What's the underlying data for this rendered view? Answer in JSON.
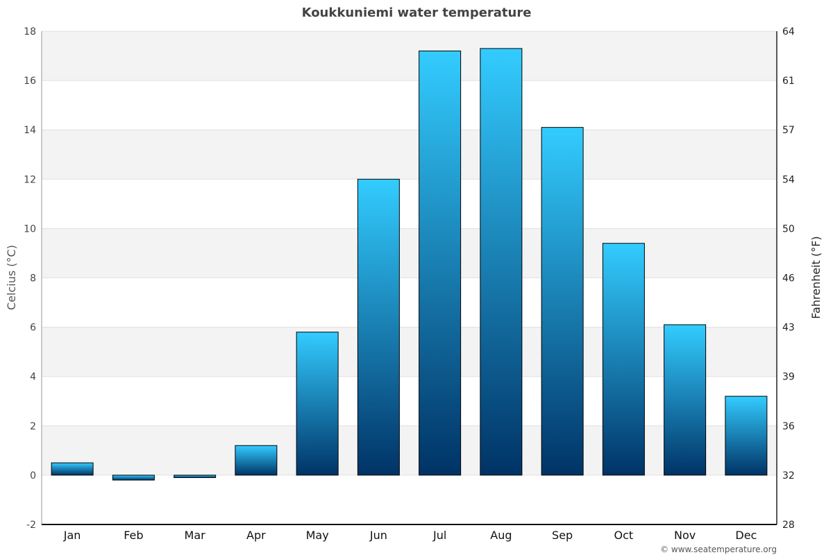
{
  "chart_data": {
    "type": "bar",
    "title": "Koukkuniemi water temperature",
    "xlabel": "",
    "ylabel": "Celcius (°C)",
    "y2label": "Fahrenheit (°F)",
    "categories": [
      "Jan",
      "Feb",
      "Mar",
      "Apr",
      "May",
      "Jun",
      "Jul",
      "Aug",
      "Sep",
      "Oct",
      "Nov",
      "Dec"
    ],
    "values": [
      0.5,
      -0.2,
      -0.1,
      1.2,
      5.8,
      12.0,
      17.2,
      17.3,
      14.1,
      9.4,
      6.1,
      3.2
    ],
    "ylim": [
      -2,
      18
    ],
    "yticks": [
      -2,
      0,
      2,
      4,
      6,
      8,
      10,
      12,
      14,
      16,
      18
    ],
    "y2ticks": [
      "28",
      "32",
      "36",
      "39",
      "43",
      "46",
      "50",
      "54",
      "57",
      "61",
      "64"
    ],
    "grid": true,
    "legend": "none",
    "colors": {
      "bar_top": "#33ccff",
      "bar_bottom": "#003366",
      "bar_stroke": "#000000",
      "band": "#f3f3f3",
      "gridline": "#e0e0e0"
    }
  },
  "credit": "© www.seatemperature.org"
}
